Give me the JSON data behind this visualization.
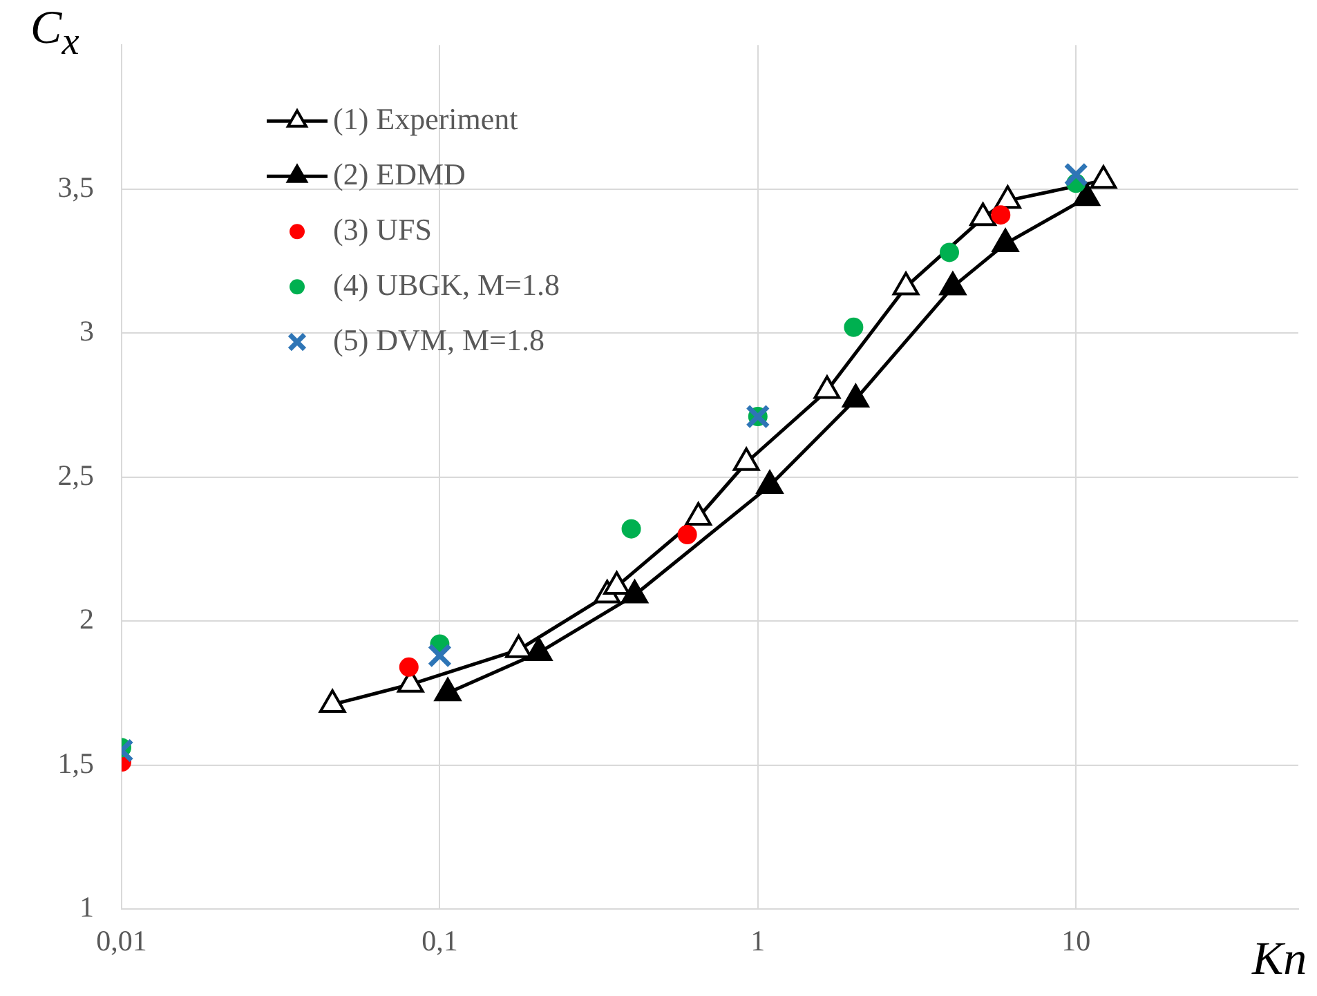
{
  "chart_data": {
    "type": "scatter",
    "xlabel": "Kn",
    "ylabel": "C$_{x}$",
    "log": "x",
    "xlim": [
      0.01,
      50
    ],
    "ylim": [
      1,
      4
    ],
    "xticks": [
      {
        "value": 0.01,
        "label": "0,01"
      },
      {
        "value": 0.1,
        "label": "0,1"
      },
      1,
      10
    ],
    "yticks": [
      1,
      {
        "value": 1.5,
        "label": "1,5"
      },
      2,
      {
        "value": 2.5,
        "label": "2,5"
      },
      3,
      {
        "value": 3.5,
        "label": "3,5"
      }
    ],
    "grid": true,
    "legend": "top left",
    "series": [
      {
        "name": "(1) Experiment",
        "type": "line",
        "marker": "triangle",
        "color": "#000000",
        "x": [
          0.046,
          0.081,
          0.177,
          0.336,
          0.36,
          0.65,
          0.92,
          1.65,
          2.92,
          5.1,
          6.1,
          12.2
        ],
        "values": [
          1.71,
          1.78,
          1.9,
          2.09,
          2.12,
          2.36,
          2.55,
          2.8,
          3.16,
          3.4,
          3.46,
          3.53
        ]
      },
      {
        "name": "(2) EDMD",
        "type": "line",
        "marker": "triangle",
        "color": "#000000",
        "x": [
          0.106,
          0.205,
          0.41,
          1.09,
          2.03,
          4.1,
          6.0,
          10.8
        ],
        "values": [
          1.75,
          1.89,
          2.09,
          2.47,
          2.77,
          3.16,
          3.31,
          3.47
        ]
      },
      {
        "name": "(3) UFS",
        "type": "scatter",
        "marker": "circle",
        "color": "#ff0000",
        "x": [
          0.01,
          0.08,
          0.6,
          5.8
        ],
        "values": [
          1.51,
          1.84,
          2.3,
          3.41
        ]
      },
      {
        "name": "(4) UBGK, M=1.8",
        "type": "scatter",
        "marker": "circle",
        "color": "#00b050",
        "x": [
          0.01,
          0.1,
          0.4,
          1,
          2,
          4,
          10
        ],
        "values": [
          1.56,
          1.92,
          2.32,
          2.71,
          3.02,
          3.28,
          3.52
        ]
      },
      {
        "name": "(5) DVM, M=1.8",
        "type": "scatter",
        "marker": "cross",
        "color": "#2e75b6",
        "x": [
          0.01,
          0.1,
          1,
          10
        ],
        "values": [
          1.55,
          1.88,
          2.71,
          3.55
        ]
      }
    ]
  }
}
